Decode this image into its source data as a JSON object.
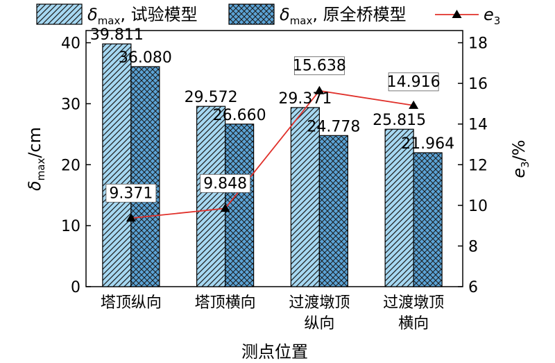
{
  "chart_data": {
    "type": "bar",
    "title": "",
    "categories": [
      [
        "塔顶纵向"
      ],
      [
        "塔顶横向"
      ],
      [
        "过渡墩顶",
        "纵向"
      ],
      [
        "过渡墩顶",
        "横向"
      ]
    ],
    "xlabel": "测点位置",
    "ylabel": {
      "symbol": "δ",
      "sub": "max",
      "unit": "/cm"
    },
    "y2label": {
      "symbol": "e",
      "sub": "3",
      "unit": "/%"
    },
    "ylim": [
      0,
      42
    ],
    "yticks": [
      0,
      10,
      20,
      30,
      40
    ],
    "y2lim": [
      6,
      18.6
    ],
    "y2ticks": [
      6,
      8,
      10,
      12,
      14,
      16,
      18
    ],
    "series": [
      {
        "key": "s1",
        "legend": {
          "symbol": "δ",
          "sub": "max",
          "text": ", 试验模型"
        },
        "kind": "bar",
        "pattern": "diag",
        "fill": "#a6d8f2",
        "values": [
          39.811,
          29.572,
          29.371,
          25.815
        ],
        "labels": [
          "39.811",
          "29.572",
          "29.371",
          "25.815"
        ]
      },
      {
        "key": "s2",
        "legend": {
          "symbol": "δ",
          "sub": "max",
          "text": ", 原全桥模型"
        },
        "kind": "bar",
        "pattern": "cross",
        "fill": "#5ba3d6",
        "values": [
          36.08,
          26.66,
          24.778,
          21.964
        ],
        "labels": [
          "36.080",
          "26.660",
          "24.778",
          "21.964"
        ]
      },
      {
        "key": "e3",
        "legend": {
          "symbol": "e",
          "sub": "3",
          "text": ""
        },
        "kind": "line",
        "axis": "right",
        "color": "#e0302a",
        "marker": "triangle",
        "values": [
          9.371,
          9.848,
          15.638,
          14.916
        ],
        "labels": [
          "9.371",
          "9.848",
          "15.638",
          "14.916"
        ]
      }
    ],
    "grid": false,
    "legend_position": "top"
  }
}
